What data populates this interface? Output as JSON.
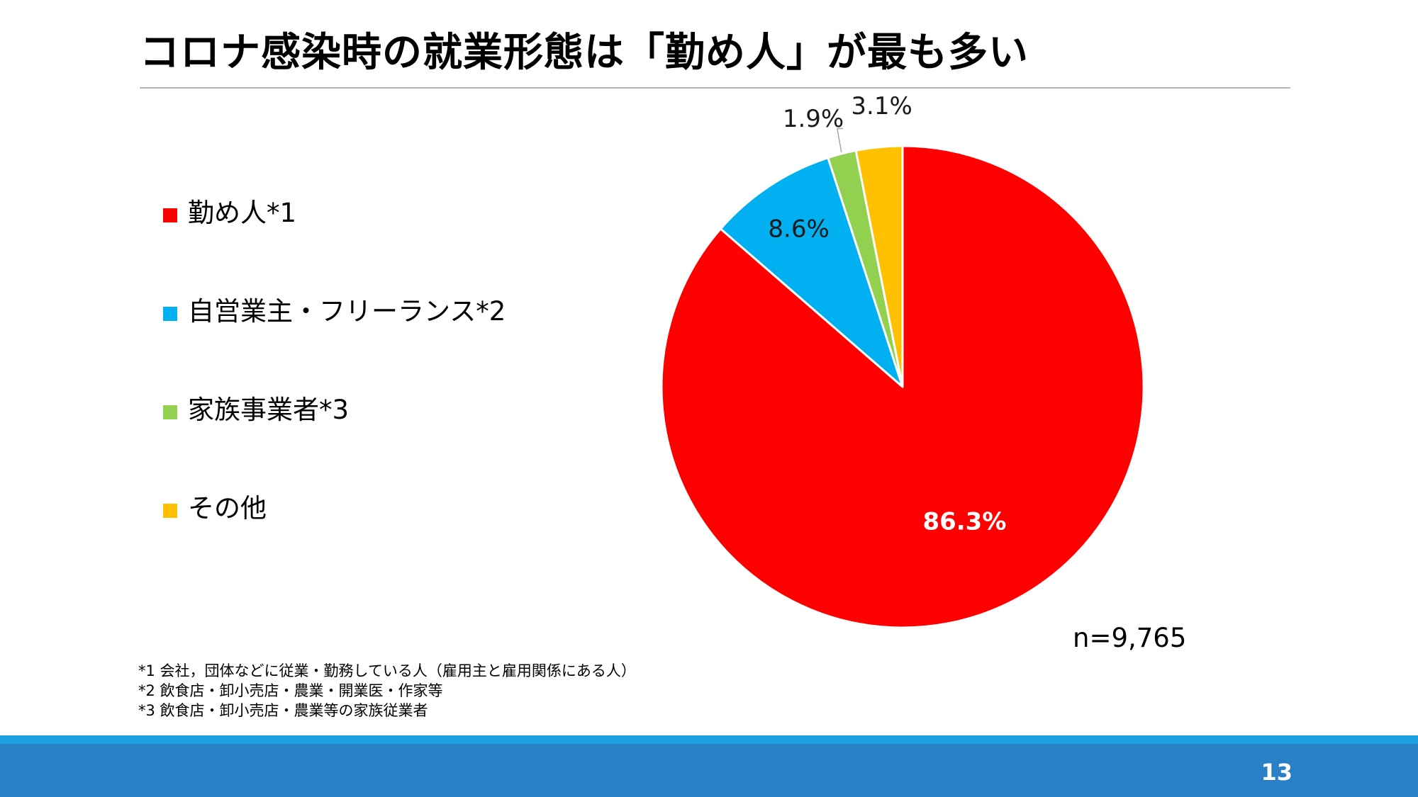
{
  "slide": {
    "title": "コロナ感染時の就業形態は「勤め人」が最も多い",
    "page_number": "13",
    "sample_size": "n=9,765",
    "footnotes": [
      "*1 会社，団体などに従業・勤務している人（雇用主と雇用関係にある人）",
      "*2 飲食店・卸小売店・農業・開業医・作家等",
      "*3 飲食店・卸小売店・農業等の家族従業者"
    ],
    "colors": {
      "title_rule": "#b4b4b4",
      "footer_stripe": "#1ea0e0",
      "footer_bar": "#2a80c7"
    }
  },
  "chart_data": {
    "type": "pie",
    "title": "",
    "start": "top",
    "direction": "clockwise",
    "legend_position": "left",
    "categories": [
      "勤め人*1",
      "自営業主・フリーランス*2",
      "家族事業者*3",
      "その他"
    ],
    "values": [
      86.3,
      8.6,
      1.9,
      3.1
    ],
    "data_labels": [
      "86.3%",
      "8.6%",
      "1.9%",
      "3.1%"
    ],
    "colors": [
      "#ff0000",
      "#00b0f0",
      "#92d050",
      "#ffc000"
    ]
  }
}
